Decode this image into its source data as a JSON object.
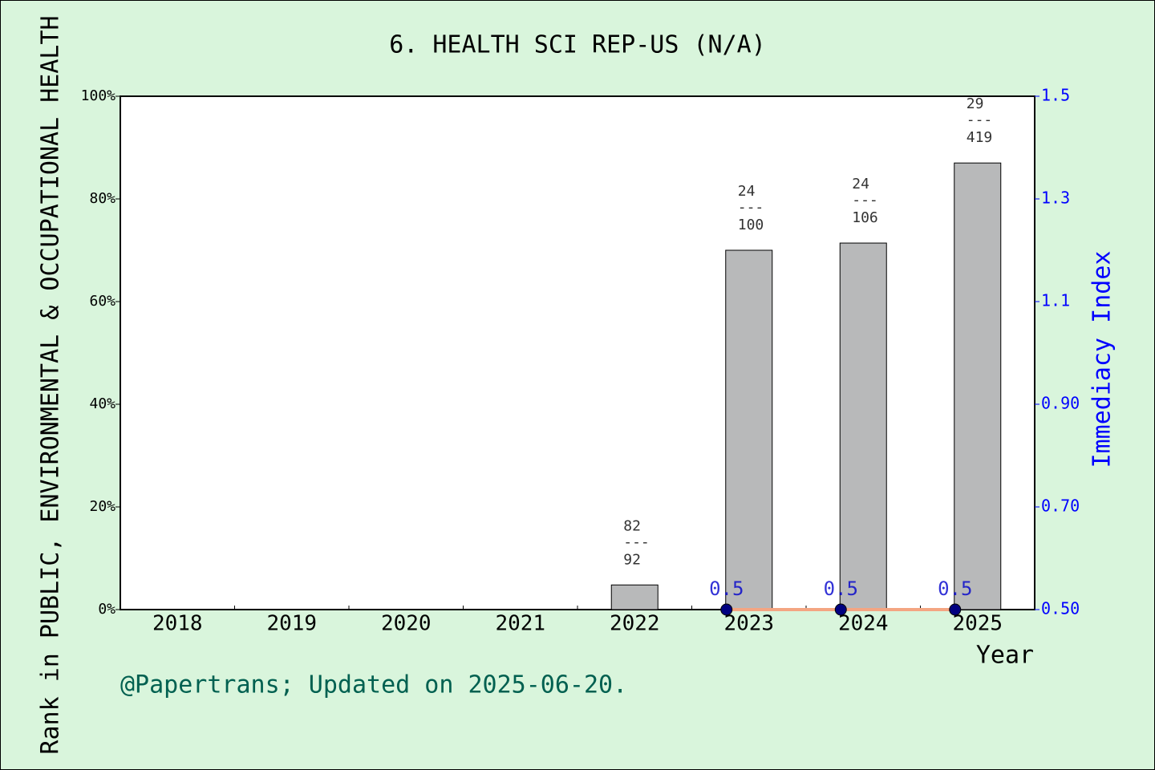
{
  "chart_data": {
    "type": "bar",
    "title": "6. HEALTH SCI REP-US (N/A)",
    "x_label": "Year",
    "y_label": "Rank in PUBLIC, ENVIRONMENTAL & OCCUPATIONAL HEALTH",
    "y2_label": "Immediacy Index",
    "footer": "@Papertrans; Updated on 2025-06-20.",
    "categories": [
      "2018",
      "2019",
      "2020",
      "2021",
      "2022",
      "2023",
      "2024",
      "2025"
    ],
    "series": [
      {
        "type": "bar",
        "color": "#b8b9ba",
        "values": [
          null,
          null,
          null,
          null,
          4.8,
          70,
          71.4,
          87
        ],
        "rank": [
          null,
          null,
          null,
          null,
          "82",
          "24",
          "24",
          "29"
        ],
        "total": [
          null,
          null,
          null,
          null,
          "92",
          "100",
          "106",
          "419"
        ]
      },
      {
        "type": "line",
        "axis": "y2",
        "color": "#000080",
        "line_color": "#f4a582",
        "label_color": "#0000cc",
        "values": [
          null,
          null,
          null,
          null,
          null,
          0.5,
          0.5,
          0.5
        ]
      }
    ],
    "separator": "---",
    "ylim": [
      0,
      100
    ],
    "yticks": [
      {
        "value": 0,
        "label": "0%"
      },
      {
        "value": 20,
        "label": "20%"
      },
      {
        "value": 40,
        "label": "40%"
      },
      {
        "value": 60,
        "label": "60%"
      },
      {
        "value": 80,
        "label": "80%"
      },
      {
        "value": 100,
        "label": "100%"
      }
    ],
    "y2lim": [
      0.5,
      1.5
    ],
    "y2ticks": [
      {
        "value": 0.5,
        "label": "0.50"
      },
      {
        "value": 0.7,
        "label": "0.70"
      },
      {
        "value": 0.9,
        "label": "0.90"
      },
      1.1,
      1.3,
      1.5
    ],
    "y2_color": "#0000ff"
  }
}
